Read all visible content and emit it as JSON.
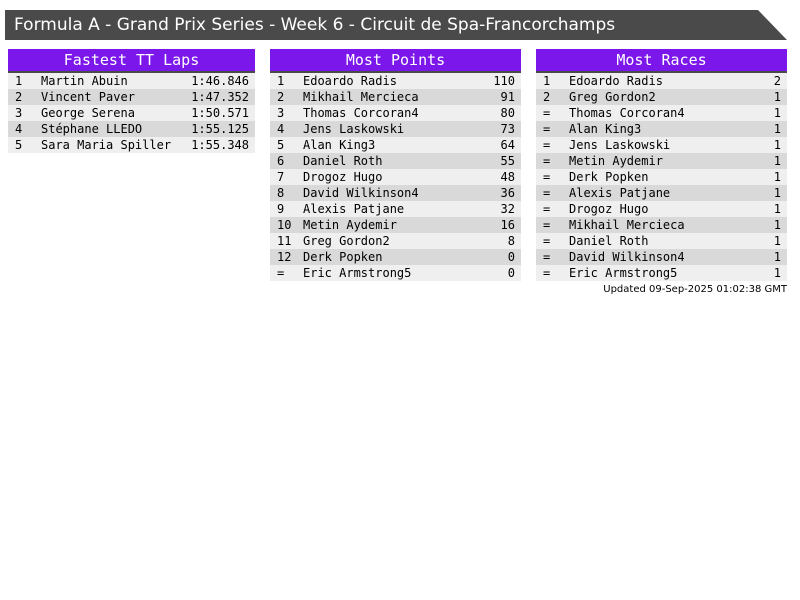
{
  "title_bar": {
    "text": "Formula A - Grand Prix Series - Week 6 - Circuit de Spa-Francorchamps"
  },
  "colors": {
    "topbar": "#4a4a4a",
    "table_header": "#7b17ea",
    "row_light": "#efefef",
    "row_dark": "#d9d9d9"
  },
  "tables": [
    {
      "title": "Fastest TT Laps",
      "columns": [
        "rank",
        "driver",
        "lap_time"
      ],
      "rows": [
        [
          "1",
          "Martin Abuin",
          "1:46.846"
        ],
        [
          "2",
          "Vincent Paver",
          "1:47.352"
        ],
        [
          "3",
          "George Serena",
          "1:50.571"
        ],
        [
          "4",
          "Stéphane LLEDO",
          "1:55.125"
        ],
        [
          "5",
          "Sara Maria Spiller",
          "1:55.348"
        ]
      ]
    },
    {
      "title": "Most Points",
      "columns": [
        "rank",
        "driver",
        "points"
      ],
      "rows": [
        [
          "1",
          "Edoardo Radis",
          "110"
        ],
        [
          "2",
          "Mikhail Mercieca",
          "91"
        ],
        [
          "3",
          "Thomas Corcoran4",
          "80"
        ],
        [
          "4",
          "Jens Laskowski",
          "73"
        ],
        [
          "5",
          "Alan King3",
          "64"
        ],
        [
          "6",
          "Daniel Roth",
          "55"
        ],
        [
          "7",
          "Drogoz Hugo",
          "48"
        ],
        [
          "8",
          "David Wilkinson4",
          "36"
        ],
        [
          "9",
          "Alexis Patjane",
          "32"
        ],
        [
          "10",
          "Metin Aydemir",
          "16"
        ],
        [
          "11",
          "Greg Gordon2",
          "8"
        ],
        [
          "12",
          "Derk Popken",
          "0"
        ],
        [
          "=",
          "Eric Armstrong5",
          "0"
        ]
      ]
    },
    {
      "title": "Most Races",
      "columns": [
        "rank",
        "driver",
        "races"
      ],
      "rows": [
        [
          "1",
          "Edoardo Radis",
          "2"
        ],
        [
          "2",
          "Greg Gordon2",
          "1"
        ],
        [
          "=",
          "Thomas Corcoran4",
          "1"
        ],
        [
          "=",
          "Alan King3",
          "1"
        ],
        [
          "=",
          "Jens Laskowski",
          "1"
        ],
        [
          "=",
          "Metin Aydemir",
          "1"
        ],
        [
          "=",
          "Derk Popken",
          "1"
        ],
        [
          "=",
          "Alexis Patjane",
          "1"
        ],
        [
          "=",
          "Drogoz Hugo",
          "1"
        ],
        [
          "=",
          "Mikhail Mercieca",
          "1"
        ],
        [
          "=",
          "Daniel Roth",
          "1"
        ],
        [
          "=",
          "David Wilkinson4",
          "1"
        ],
        [
          "=",
          "Eric Armstrong5",
          "1"
        ]
      ]
    }
  ],
  "updated": "Updated 09-Sep-2025 01:02:38 GMT"
}
